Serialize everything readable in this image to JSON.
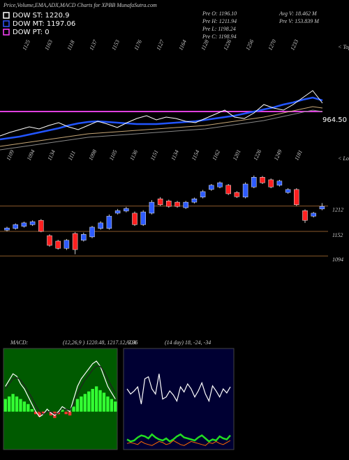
{
  "header": {
    "title": "Price,Volume,EMA,ADX,MACD Charts for XPBB MunafaSutra.com",
    "legend": [
      {
        "label": "DOW ST: 1220.9",
        "color": "#ffffff"
      },
      {
        "label": "DOW MT: 1197.06",
        "color": "#3355ff"
      },
      {
        "label": "DOW PT: 0",
        "color": "#ff44ff"
      }
    ],
    "stats": [
      "Pre  O: 1196.10",
      "Pre  H: 1211.94",
      "Pre  L: 1198.24",
      "Pre  C: 1198.94",
      "Avg V: 18.462  M",
      "Pre  V: 153.839 M"
    ]
  },
  "chart_data": [
    {
      "type": "line",
      "ylim": [
        900,
        1100
      ],
      "tops_label": "< Tops",
      "lows_label": "< Lows",
      "tops": [
        "1125",
        "1163",
        "1118",
        "1137",
        "1153",
        "1176",
        "1127",
        "1164",
        "1128",
        "1226",
        "1256",
        "1270",
        "1233"
      ],
      "lows": [
        "1109",
        "1094",
        "1134",
        "1111",
        "1098",
        "1105",
        "1136",
        "1151",
        "1134",
        "1154",
        "1162",
        "1201",
        "1226",
        "1249",
        "1181"
      ],
      "hline": {
        "value": 990,
        "color": "#e040e0"
      },
      "annotation": "964.50",
      "series": [
        {
          "color": "#888888",
          "width": 1,
          "values": [
            935,
            937,
            939,
            941,
            943,
            945,
            947,
            949,
            951,
            953,
            954,
            955,
            956,
            957,
            958,
            959,
            960,
            961,
            962,
            963,
            964,
            965,
            967,
            969,
            971,
            973,
            975,
            977,
            980,
            983,
            986,
            989,
            992,
            990
          ]
        },
        {
          "color": "#c8a878",
          "width": 1,
          "values": [
            940,
            942,
            944,
            946,
            948,
            950,
            952,
            954,
            956,
            958,
            959,
            960,
            961,
            962,
            963,
            964,
            965,
            966,
            967,
            968,
            969,
            970,
            972,
            974,
            976,
            978,
            980,
            982,
            985,
            988,
            991,
            994,
            997,
            995
          ]
        },
        {
          "color": "#2255ff",
          "width": 2.5,
          "values": [
            950,
            952,
            954,
            957,
            960,
            963,
            966,
            970,
            973,
            975,
            976,
            975,
            974,
            973,
            972,
            972,
            972,
            973,
            974,
            975,
            976,
            978,
            980,
            982,
            984,
            987,
            990,
            993,
            996,
            1000,
            1003,
            1007,
            1010,
            1006
          ]
        },
        {
          "color": "#ffffff",
          "width": 1,
          "values": [
            955,
            960,
            964,
            968,
            965,
            970,
            974,
            968,
            964,
            970,
            976,
            972,
            967,
            974,
            980,
            984,
            978,
            982,
            980,
            976,
            974,
            980,
            986,
            992,
            982,
            980,
            988,
            1000,
            995,
            992,
            1000,
            1010,
            1020,
            1002
          ]
        }
      ]
    },
    {
      "type": "candlestick",
      "ylim": [
        1040,
        1320
      ],
      "yticks": [
        1094,
        1152,
        1212
      ],
      "up_color": "#2d5bff",
      "down_color": "#ff2020",
      "grid_color": "#8b5a2b",
      "open": [
        1155,
        1159,
        1164,
        1168,
        1178,
        1142,
        1129,
        1112,
        1147,
        1131,
        1139,
        1159,
        1159,
        1195,
        1200,
        1195,
        1168,
        1195,
        1229,
        1224,
        1221,
        1208,
        1221,
        1233,
        1251,
        1257,
        1261,
        1244,
        1233,
        1257,
        1280,
        1274,
        1261,
        1244,
        1251,
        1201,
        1188,
        1205
      ],
      "high": [
        1163,
        1171,
        1175,
        1178,
        1181,
        1145,
        1132,
        1134,
        1150,
        1149,
        1165,
        1176,
        1192,
        1205,
        1210,
        1199,
        1202,
        1226,
        1233,
        1227,
        1224,
        1224,
        1232,
        1250,
        1264,
        1270,
        1264,
        1247,
        1268,
        1284,
        1283,
        1277,
        1274,
        1254,
        1254,
        1204,
        1198,
        1219
      ],
      "low": [
        1152,
        1156,
        1161,
        1165,
        1150,
        1116,
        1109,
        1108,
        1098,
        1128,
        1136,
        1156,
        1156,
        1192,
        1197,
        1165,
        1165,
        1192,
        1212,
        1208,
        1208,
        1205,
        1218,
        1230,
        1248,
        1254,
        1238,
        1231,
        1230,
        1254,
        1264,
        1254,
        1258,
        1241,
        1212,
        1172,
        1185,
        1202
      ],
      "close": [
        1160,
        1168,
        1172,
        1175,
        1152,
        1119,
        1112,
        1131,
        1109,
        1145,
        1162,
        1172,
        1188,
        1201,
        1206,
        1168,
        1198,
        1221,
        1215,
        1211,
        1211,
        1221,
        1229,
        1246,
        1261,
        1267,
        1241,
        1234,
        1264,
        1280,
        1267,
        1257,
        1271,
        1251,
        1215,
        1178,
        1195,
        1211
      ]
    },
    {
      "type": "macd",
      "label": "MACD:",
      "params": "(12,26,9 ) 1220.48, 1217.12, 3.36",
      "ylim": [
        -30,
        50
      ],
      "background": "#005a00",
      "bar_color": "#33ff33",
      "histogram": [
        10,
        12,
        14,
        12,
        10,
        8,
        6,
        2,
        -2,
        -4,
        -2,
        0,
        -3,
        -5,
        -2,
        2,
        -2,
        -3,
        4,
        10,
        12,
        14,
        16,
        18,
        20,
        17,
        15,
        12,
        10,
        8
      ],
      "series": [
        {
          "color": "#ffffff",
          "values": [
            20,
            25,
            30,
            28,
            22,
            18,
            12,
            6,
            0,
            -4,
            -2,
            2,
            -1,
            -3,
            0,
            4,
            2,
            0,
            10,
            20,
            26,
            30,
            34,
            38,
            40,
            36,
            28,
            20,
            15,
            10
          ]
        },
        {
          "color": "#222222",
          "values": [
            18,
            22,
            26,
            27,
            25,
            21,
            16,
            11,
            5,
            0,
            -2,
            0,
            0,
            -2,
            -1,
            2,
            2,
            1,
            6,
            14,
            20,
            25,
            29,
            33,
            36,
            36,
            32,
            26,
            20,
            15
          ]
        }
      ]
    },
    {
      "type": "adx",
      "label": "ADX",
      "params": "(14 day) 18, -24, -34",
      "ylim": [
        0,
        100
      ],
      "background": "#000033",
      "series": [
        {
          "color": "#ffffff",
          "width": 1.2,
          "values": [
            60,
            55,
            58,
            62,
            45,
            70,
            72,
            60,
            55,
            75,
            50,
            52,
            58,
            54,
            48,
            62,
            57,
            65,
            60,
            52,
            58,
            66,
            55,
            48,
            63,
            58,
            52,
            60,
            56,
            62
          ]
        },
        {
          "color": "#22dd22",
          "width": 2.5,
          "values": [
            10,
            8,
            9,
            12,
            14,
            13,
            11,
            15,
            12,
            10,
            9,
            11,
            8,
            10,
            13,
            15,
            12,
            11,
            10,
            9,
            12,
            14,
            11,
            8,
            10,
            9,
            13,
            11,
            10,
            14
          ]
        },
        {
          "color": "#ff6a00",
          "width": 1,
          "values": [
            6,
            7,
            6,
            5,
            8,
            6,
            5,
            4,
            6,
            8,
            7,
            5,
            6,
            9,
            7,
            5,
            4,
            6,
            8,
            7,
            6,
            5,
            4,
            7,
            6,
            8,
            6,
            5,
            7,
            9
          ]
        }
      ]
    }
  ]
}
